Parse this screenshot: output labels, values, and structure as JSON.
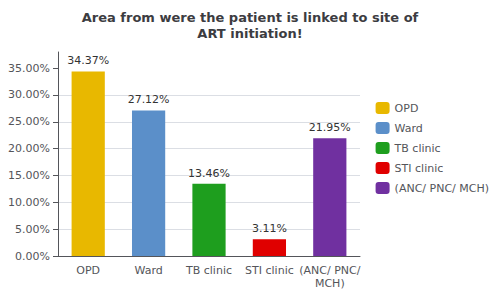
{
  "chart_data": {
    "type": "bar",
    "title": "Area from were the patient is linked to site of\nART initiation!",
    "categories": [
      "OPD",
      "Ward",
      "TB clinic",
      "STI clinic",
      "(ANC/ PNC/\nMCH)"
    ],
    "series": [
      {
        "name": "OPD",
        "color": "#E8B800",
        "values": [
          34.37,
          null,
          null,
          null,
          null
        ],
        "value_labels": [
          "34.37%",
          null,
          null,
          null,
          null
        ]
      },
      {
        "name": "Ward",
        "color": "#5B8FC9",
        "values": [
          null,
          27.12,
          null,
          null,
          null
        ],
        "value_labels": [
          null,
          "27.12%",
          null,
          null,
          null
        ]
      },
      {
        "name": "TB clinic",
        "color": "#1E9E1E",
        "values": [
          null,
          null,
          13.46,
          null,
          null
        ],
        "value_labels": [
          null,
          null,
          "13.46%",
          null,
          null
        ]
      },
      {
        "name": "STI clinic",
        "color": "#E00000",
        "values": [
          null,
          null,
          null,
          3.11,
          null
        ],
        "value_labels": [
          null,
          null,
          null,
          "3.11%",
          null
        ]
      },
      {
        "name": "(ANC/ PNC/ MCH)",
        "color": "#7030A0",
        "values": [
          null,
          null,
          null,
          null,
          21.95
        ],
        "value_labels": [
          null,
          null,
          null,
          null,
          "21.95%"
        ]
      }
    ],
    "stacked": true,
    "data_labels": true,
    "ylim": [
      0,
      38
    ],
    "yticks": [
      {
        "value": 0,
        "label": "0.00%"
      },
      {
        "value": 5,
        "label": "5.00%"
      },
      {
        "value": 10,
        "label": "10.00%"
      },
      {
        "value": 15,
        "label": "15.00%"
      },
      {
        "value": 20,
        "label": "20.00%"
      },
      {
        "value": 25,
        "label": "25.00%"
      },
      {
        "value": 30,
        "label": "30.00%"
      },
      {
        "value": 35,
        "label": "35.00%"
      }
    ],
    "grid": true,
    "legend": "right"
  }
}
